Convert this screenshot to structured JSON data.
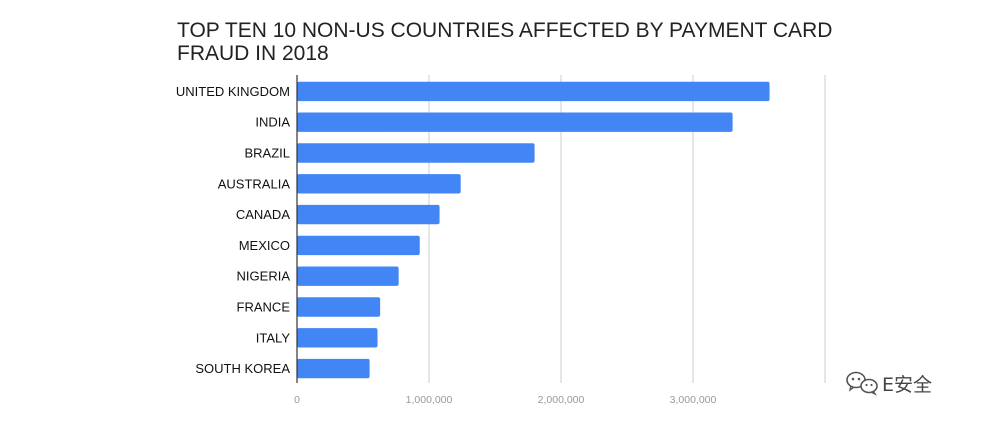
{
  "chart_data": {
    "type": "bar",
    "orientation": "horizontal",
    "title_lines": [
      "TOP TEN 10 NON-US COUNTRIES AFFECTED BY PAYMENT CARD",
      "FRAUD IN 2018"
    ],
    "categories": [
      "UNITED KINGDOM",
      "INDIA",
      "BRAZIL",
      "AUSTRALIA",
      "CANADA",
      "MEXICO",
      "NIGERIA",
      "FRANCE",
      "ITALY",
      "SOUTH KOREA"
    ],
    "values": [
      3580000,
      3300000,
      1800000,
      1240000,
      1080000,
      930000,
      770000,
      630000,
      610000,
      550000
    ],
    "xticks": [
      0,
      1000000,
      2000000,
      3000000
    ],
    "xtick_labels": [
      "0",
      "1,000,000",
      "2,000,000",
      "3,000,000"
    ],
    "xlim": [
      0,
      4000000
    ],
    "grid": true,
    "bar_color": "#4285f4",
    "grid_color": "#cccccc"
  },
  "watermark": {
    "text": "E安全",
    "icon": "wechat-icon"
  }
}
